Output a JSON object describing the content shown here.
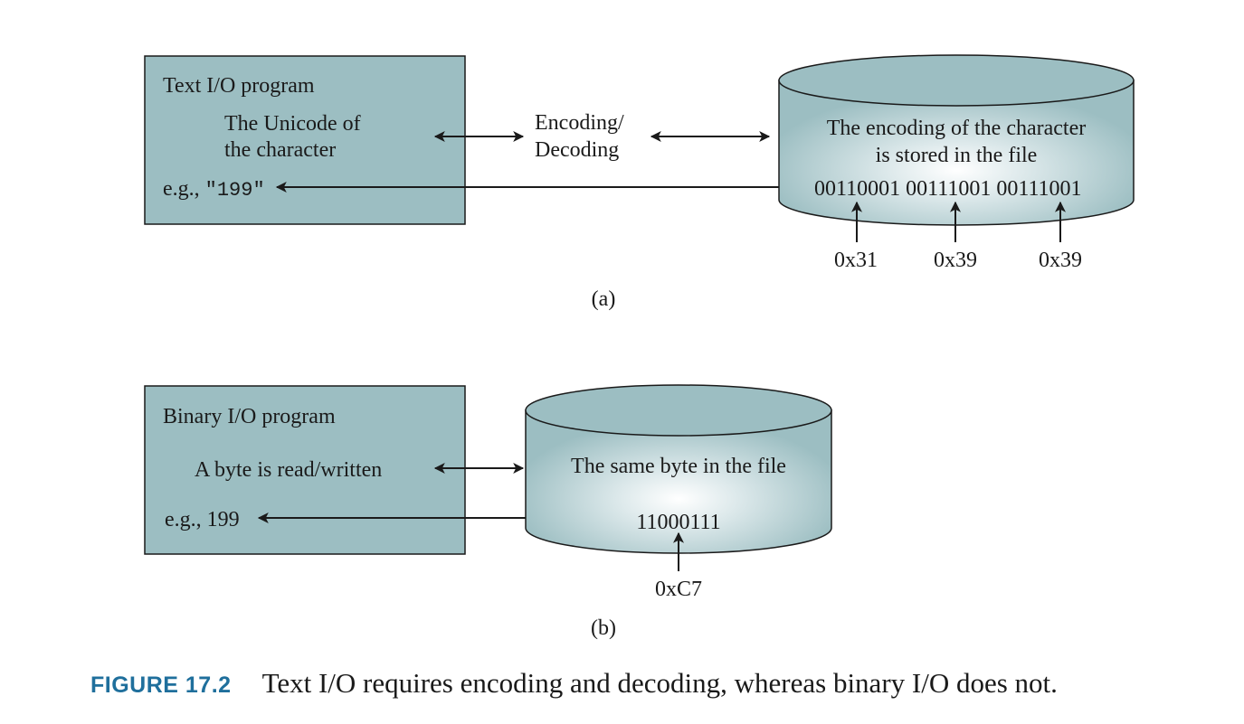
{
  "colors": {
    "box_fill": "#9cbec2",
    "line": "#1a1a1a",
    "caption_label": "#1f6f9c"
  },
  "diagram_a": {
    "program_title": "Text I/O program",
    "unicode_line1": "The Unicode of",
    "unicode_line2": "the character",
    "example_prefix": "e.g., ",
    "example_value": "\"199\"",
    "encoding_line1": "Encoding/",
    "encoding_line2": "Decoding",
    "file_line1": "The encoding of the character",
    "file_line2": "is stored in the file",
    "bits": "00110001 00111001 00111001",
    "hex": [
      "0x31",
      "0x39",
      "0x39"
    ],
    "label": "(a)"
  },
  "diagram_b": {
    "program_title": "Binary I/O program",
    "byte_text": "A byte is read/written",
    "example": "e.g., 199",
    "file_line1": "The same byte in the file",
    "bits": "11000111",
    "hex": "0xC7",
    "label": "(b)"
  },
  "caption": {
    "label": "FIGURE 17.2",
    "text": "Text I/O requires encoding and decoding, whereas binary I/O does not."
  }
}
